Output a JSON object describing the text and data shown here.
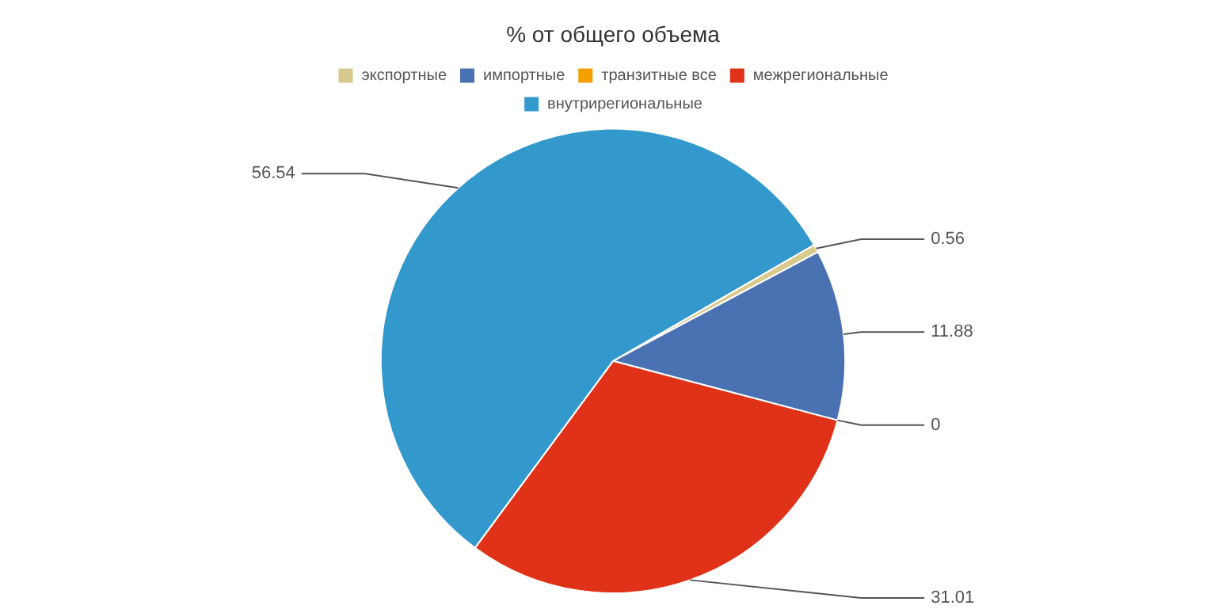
{
  "chart_data": {
    "type": "pie",
    "title": "% от общего объема",
    "categories": [
      "экспортные",
      "импортные",
      "транзитные все",
      "межрегиональные",
      "внутрирегиональные"
    ],
    "values": [
      0.56,
      11.88,
      0,
      31.01,
      56.54
    ],
    "colors": [
      "#d8c98c",
      "#4a72b2",
      "#f59f00",
      "#e03218",
      "#3398cc"
    ],
    "value_labels": [
      "0.56",
      "11.88",
      "0",
      "31.01",
      "56.54"
    ],
    "legend": "top"
  }
}
